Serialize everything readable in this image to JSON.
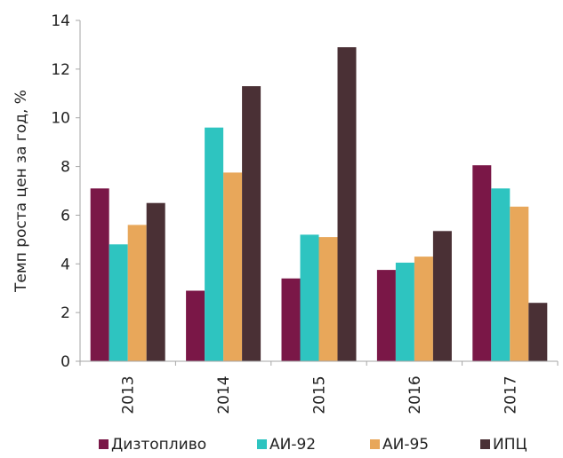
{
  "chart_data": {
    "type": "bar",
    "title": "",
    "xlabel": "",
    "ylabel": "Темп роста цен за год, %",
    "ylim": [
      0,
      14
    ],
    "yticks": [
      0,
      2,
      4,
      6,
      8,
      10,
      12,
      14
    ],
    "grid": false,
    "legend_position": "bottom",
    "categories": [
      "2013",
      "2014",
      "2015",
      "2016",
      "2017"
    ],
    "series": [
      {
        "name": "Дизтопливо",
        "color": "#7a1747",
        "values": [
          7.1,
          2.9,
          3.4,
          3.75,
          8.05
        ]
      },
      {
        "name": "АИ-92",
        "color": "#2ec4c0",
        "values": [
          4.8,
          9.6,
          5.2,
          4.05,
          7.1
        ]
      },
      {
        "name": "АИ-95",
        "color": "#e8a75a",
        "values": [
          5.6,
          7.75,
          5.1,
          4.3,
          6.35
        ]
      },
      {
        "name": "ИПЦ",
        "color": "#4a3035",
        "values": [
          6.5,
          11.3,
          12.9,
          5.35,
          2.4
        ]
      }
    ]
  }
}
